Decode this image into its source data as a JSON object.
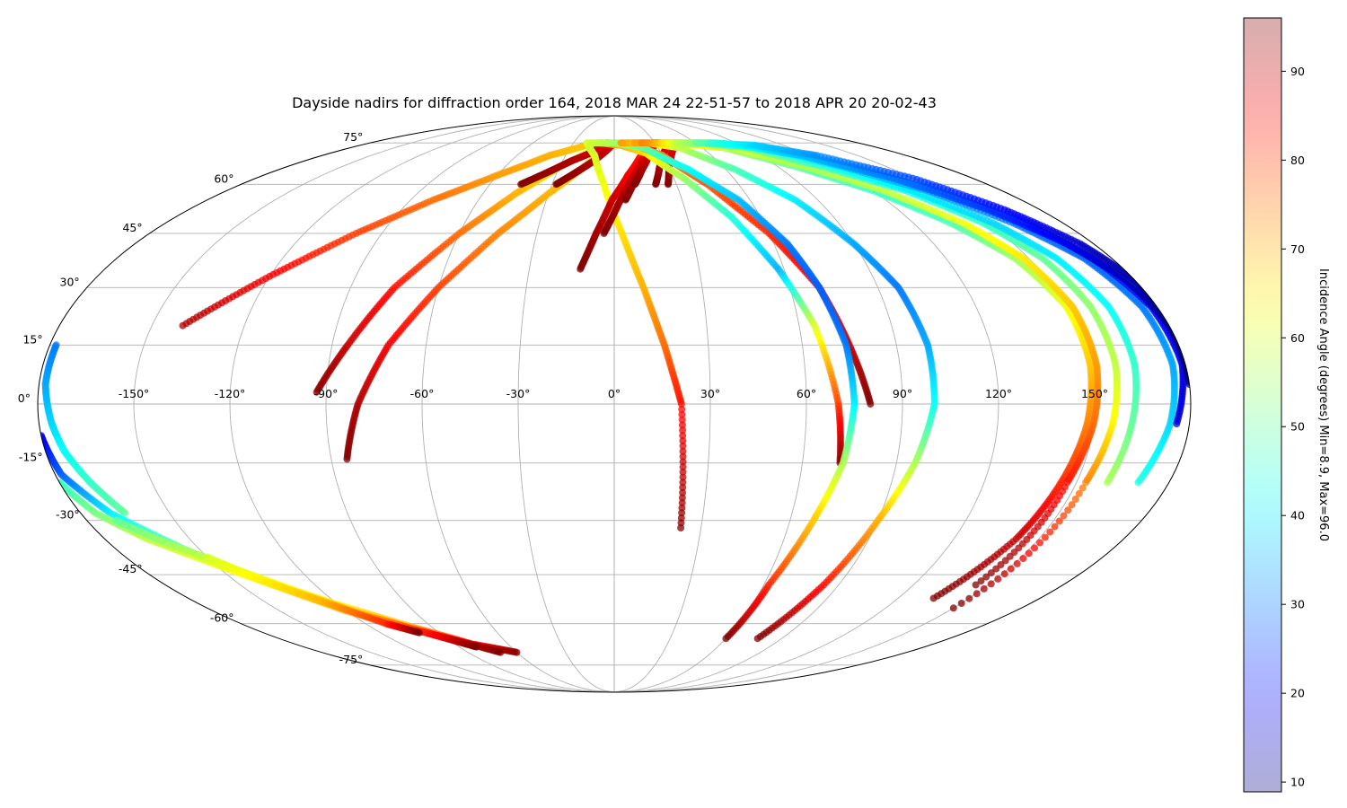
{
  "chart_data": {
    "type": "scatter",
    "projection": "mollweide",
    "title": "Dayside nadirs for diffraction order 164, 2018 MAR 24 22-51-57 to 2018 APR 20 20-02-43",
    "grid": true,
    "lon_ticks": [
      -150,
      -120,
      -90,
      -60,
      -30,
      0,
      30,
      60,
      90,
      120,
      150
    ],
    "lon_tick_labels": [
      "-150°",
      "-120°",
      "-90°",
      "-60°",
      "-30°",
      "0°",
      "30°",
      "60°",
      "90°",
      "120°",
      "150°"
    ],
    "lat_ticks": [
      75,
      60,
      45,
      30,
      15,
      0,
      -15,
      -30,
      -45,
      -60,
      -75
    ],
    "lat_tick_labels": [
      "75°",
      "60°",
      "45°",
      "30°",
      "15°",
      "0°",
      "-15°",
      "-30°",
      "-45°",
      "-60°",
      "-75°"
    ],
    "colorbar": {
      "label": "Incidence Angle (degrees) Min=8.9, Max=96.0",
      "min": 8.9,
      "max": 96.0,
      "ticks": [
        10,
        20,
        30,
        40,
        50,
        60,
        70,
        80,
        90
      ],
      "tick_labels": [
        "10",
        "20",
        "30",
        "40",
        "50",
        "60",
        "70",
        "80",
        "90"
      ],
      "colormap": "jet"
    },
    "tracks": [
      {
        "lon": [
          -140,
          -120,
          -100,
          -80,
          -60,
          -40,
          -20,
          -5
        ],
        "lat": [
          20,
          33,
          45,
          55,
          63,
          70,
          74,
          75
        ],
        "c": [
          92,
          86,
          80,
          76,
          72,
          70,
          68,
          67
        ]
      },
      {
        "lon": [
          -93,
          -85,
          -75,
          -60,
          -45,
          -30,
          -15,
          -5
        ],
        "lat": [
          3,
          15,
          30,
          45,
          57,
          66,
          72,
          75
        ],
        "c": [
          95,
          90,
          84,
          76,
          70,
          65,
          61,
          60
        ]
      },
      {
        "lon": [
          -85,
          -80,
          -72,
          -60,
          -45,
          -30,
          -15,
          -5
        ],
        "lat": [
          -14,
          0,
          15,
          30,
          45,
          57,
          67,
          74
        ],
        "c": [
          96,
          92,
          86,
          80,
          74,
          70,
          66,
          64
        ]
      },
      {
        "lon": [
          -45,
          -35,
          -25,
          -15,
          -8,
          -5
        ],
        "lat": [
          60,
          64,
          68,
          71,
          74,
          75
        ],
        "c": [
          96,
          94,
          92,
          90,
          88,
          86
        ]
      },
      {
        "lon": [
          -28,
          -20,
          -12,
          -5,
          0
        ],
        "lat": [
          60,
          64,
          68,
          72,
          75
        ],
        "c": [
          96,
          94,
          92,
          90,
          88
        ]
      },
      {
        "lon": [
          -20,
          -12,
          -5,
          3,
          10,
          16,
          21,
          23
        ],
        "lat": [
          75,
          70,
          60,
          45,
          30,
          15,
          0,
          -32
        ],
        "c": [
          58,
          60,
          62,
          66,
          70,
          76,
          84,
          95
        ]
      },
      {
        "lon": [
          -12,
          -7,
          -1,
          7,
          15,
          22,
          28,
          32
        ],
        "lat": [
          35,
          45,
          55,
          63,
          69,
          73,
          75,
          75
        ],
        "c": [
          96,
          93,
          90,
          86,
          84,
          82,
          80,
          78
        ]
      },
      {
        "lon": [
          -4,
          2,
          9,
          16,
          22,
          28,
          32
        ],
        "lat": [
          45,
          54,
          62,
          68,
          72,
          74,
          75
        ],
        "c": [
          96,
          93,
          90,
          88,
          86,
          84,
          82
        ]
      },
      {
        "lon": [
          5,
          10,
          16,
          22,
          28,
          32
        ],
        "lat": [
          55,
          61,
          67,
          71,
          74,
          75
        ],
        "c": [
          96,
          93,
          90,
          88,
          86,
          84
        ]
      },
      {
        "lon": [
          10,
          15,
          20,
          26,
          31
        ],
        "lat": [
          60,
          65,
          69,
          73,
          75
        ],
        "c": [
          96,
          93,
          90,
          88,
          86
        ]
      },
      {
        "lon": [
          20,
          25,
          30,
          35,
          40
        ],
        "lat": [
          60,
          66,
          70,
          73,
          75
        ],
        "c": [
          96,
          93,
          90,
          88,
          86
        ]
      },
      {
        "lon": [
          26,
          30,
          35,
          40,
          45
        ],
        "lat": [
          60,
          66,
          70,
          73,
          75
        ],
        "c": [
          96,
          93,
          90,
          88,
          86
        ]
      },
      {
        "lon": [
          -10,
          5,
          20,
          35,
          48,
          58,
          65,
          70,
          72
        ],
        "lat": [
          75,
          74,
          71,
          62,
          50,
          35,
          20,
          0,
          -15
        ],
        "c": [
          72,
          70,
          66,
          55,
          45,
          35,
          60,
          80,
          96
        ]
      },
      {
        "lon": [
          0,
          15,
          30,
          45,
          60,
          70,
          75,
          80
        ],
        "lat": [
          75,
          74,
          70,
          60,
          45,
          30,
          15,
          0
        ],
        "c": [
          70,
          72,
          74,
          78,
          82,
          86,
          90,
          96
        ]
      },
      {
        "lon": [
          -20,
          0,
          20,
          40,
          55,
          65,
          70,
          74,
          75,
          73,
          68,
          62,
          60
        ],
        "lat": [
          75,
          75,
          73,
          65,
          55,
          42,
          30,
          15,
          0,
          -15,
          -30,
          -48,
          -65
        ],
        "c": [
          60,
          56,
          50,
          42,
          36,
          30,
          28,
          30,
          40,
          56,
          68,
          82,
          96
        ]
      },
      {
        "lon": [
          5,
          25,
          45,
          65,
          80,
          90,
          97,
          100,
          100,
          96,
          90,
          84,
          77
        ],
        "lat": [
          75,
          75,
          73,
          65,
          55,
          42,
          30,
          15,
          0,
          -15,
          -30,
          -48,
          -65
        ],
        "c": [
          72,
          66,
          58,
          48,
          40,
          34,
          30,
          34,
          42,
          56,
          70,
          84,
          96
        ]
      },
      {
        "lon": [
          15,
          45,
          75,
          100,
          120,
          135,
          145,
          150,
          150,
          148,
          145,
          142,
          135
        ],
        "lat": [
          75,
          75,
          73,
          66,
          58,
          48,
          38,
          25,
          10,
          -5,
          -20,
          -35,
          -52
        ],
        "c": [
          72,
          62,
          55,
          50,
          46,
          48,
          55,
          62,
          68,
          74,
          82,
          90,
          96
        ]
      },
      {
        "lon": [
          20,
          50,
          80,
          105,
          125,
          140,
          148,
          152,
          152,
          150,
          147,
          145
        ],
        "lat": [
          75,
          75,
          73,
          66,
          58,
          48,
          38,
          25,
          10,
          -5,
          -20,
          -48
        ],
        "c": [
          74,
          66,
          60,
          56,
          58,
          62,
          65,
          68,
          72,
          76,
          84,
          96
        ]
      },
      {
        "lon": [
          30,
          60,
          90,
          115,
          135,
          148,
          155,
          158,
          158,
          156,
          153,
          150
        ],
        "lat": [
          75,
          75,
          73,
          66,
          58,
          48,
          38,
          25,
          10,
          -5,
          -20,
          -55
        ],
        "c": [
          70,
          60,
          52,
          46,
          44,
          46,
          50,
          54,
          58,
          64,
          74,
          96
        ]
      },
      {
        "lon": [
          35,
          65,
          95,
          120,
          138,
          152,
          160,
          164,
          164,
          162,
          160
        ],
        "lat": [
          75,
          75,
          73,
          66,
          58,
          48,
          38,
          25,
          10,
          -5,
          -20
        ],
        "c": [
          66,
          58,
          50,
          44,
          40,
          38,
          40,
          42,
          46,
          50,
          56
        ]
      },
      {
        "lon": [
          40,
          70,
          100,
          125,
          145,
          160,
          170,
          175,
          176,
          174,
          170
        ],
        "lat": [
          75,
          75,
          73,
          66,
          58,
          48,
          38,
          25,
          10,
          -5,
          -20
        ],
        "c": [
          62,
          52,
          44,
          38,
          34,
          30,
          28,
          30,
          34,
          38,
          44
        ]
      },
      {
        "lon": [
          45,
          75,
          105,
          130,
          150,
          165,
          173,
          178,
          179,
          176
        ],
        "lat": [
          75,
          75,
          73,
          66,
          58,
          48,
          38,
          25,
          10,
          -5
        ],
        "c": [
          58,
          48,
          40,
          34,
          30,
          26,
          22,
          20,
          18,
          16
        ]
      },
      {
        "lon": [
          60,
          90,
          115,
          140,
          158,
          170,
          177,
          180,
          180
        ],
        "lat": [
          75,
          74,
          70,
          62,
          52,
          42,
          32,
          20,
          8
        ],
        "c": [
          50,
          42,
          36,
          30,
          24,
          18,
          14,
          12,
          10
        ]
      },
      {
        "lon": [
          70,
          100,
          125,
          150,
          165,
          175,
          180,
          180,
          180
        ],
        "lat": [
          75,
          74,
          70,
          62,
          52,
          42,
          32,
          20,
          5
        ],
        "c": [
          46,
          38,
          32,
          26,
          20,
          15,
          12,
          10,
          9
        ]
      },
      {
        "lon": [
          -178,
          -178,
          -176,
          -174,
          -170,
          -165
        ],
        "lat": [
          15,
          5,
          -5,
          -12,
          -20,
          -28
        ],
        "c": [
          30,
          34,
          38,
          42,
          46,
          50
        ]
      },
      {
        "lon": [
          -180,
          -178,
          -170,
          -155,
          -140,
          -120,
          -100,
          -80,
          -60
        ],
        "lat": [
          -8,
          -18,
          -28,
          -38,
          -46,
          -54,
          -61,
          -67,
          -70
        ],
        "c": [
          18,
          28,
          40,
          50,
          58,
          64,
          70,
          85,
          95
        ]
      },
      {
        "lon": [
          -180,
          -175,
          -165,
          -150,
          -135,
          -120,
          -100,
          -85,
          -70
        ],
        "lat": [
          -20,
          -28,
          -35,
          -42,
          -49,
          -56,
          -62,
          -66,
          -70
        ],
        "c": [
          46,
          52,
          58,
          62,
          66,
          70,
          78,
          88,
          96
        ]
      },
      {
        "lon": [
          -170,
          -160,
          -145,
          -130,
          -115,
          -100,
          -90,
          -80
        ],
        "lat": [
          -30,
          -36,
          -43,
          -50,
          -57,
          -62,
          -65,
          -68
        ],
        "c": [
          50,
          55,
          60,
          64,
          70,
          80,
          88,
          96
        ]
      },
      {
        "lon": [
          -150,
          -140,
          -125,
          -110,
          -100
        ],
        "lat": [
          -40,
          -46,
          -53,
          -60,
          -63
        ],
        "c": [
          60,
          64,
          70,
          82,
          96
        ]
      }
    ]
  }
}
